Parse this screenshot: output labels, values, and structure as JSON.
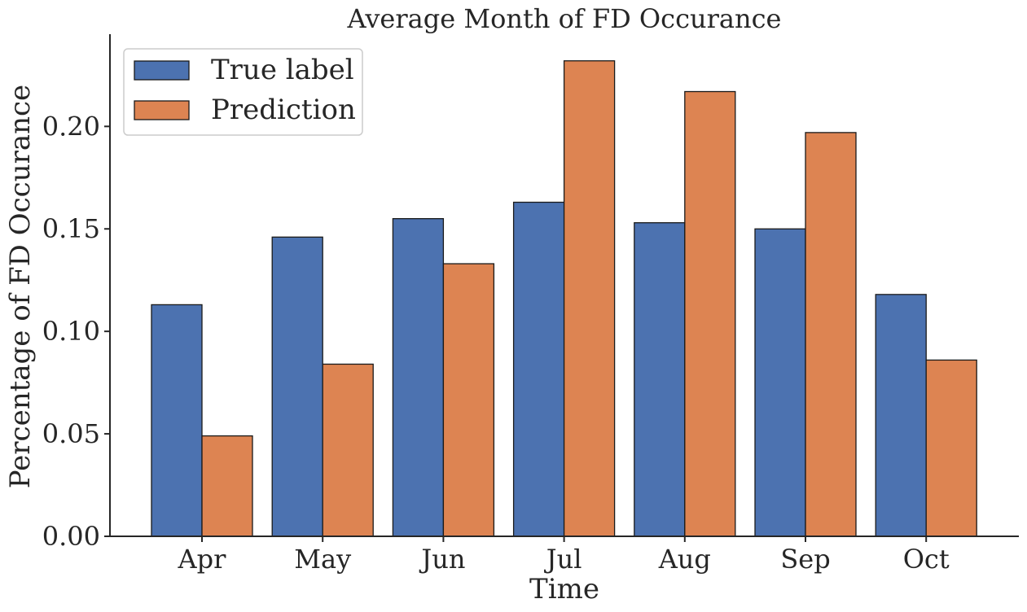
{
  "chart_data": {
    "type": "bar",
    "title": "Average Month of FD Occurance",
    "xlabel": "Time",
    "ylabel": "Percentage of FD Occurance",
    "categories": [
      "Apr",
      "May",
      "Jun",
      "Jul",
      "Aug",
      "Sep",
      "Oct"
    ],
    "series": [
      {
        "name": "True label",
        "color": "#4c72b0",
        "values": [
          0.113,
          0.146,
          0.155,
          0.163,
          0.153,
          0.15,
          0.118
        ]
      },
      {
        "name": "Prediction",
        "color": "#dd8452",
        "values": [
          0.049,
          0.084,
          0.133,
          0.232,
          0.217,
          0.197,
          0.086
        ]
      }
    ],
    "ylim": [
      0,
      0.245
    ],
    "yticks": [
      0.0,
      0.05,
      0.1,
      0.15,
      0.2
    ],
    "ytick_labels": [
      "0.00",
      "0.05",
      "0.10",
      "0.15",
      "0.20"
    ],
    "grid": false,
    "legend_position": "upper-left"
  }
}
